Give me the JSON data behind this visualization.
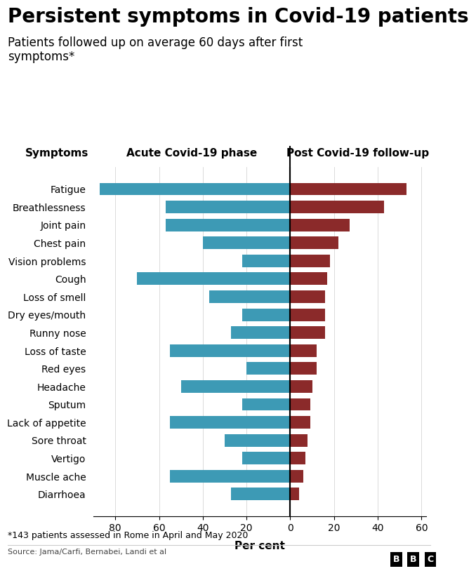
{
  "title": "Persistent symptoms in Covid-19 patients",
  "subtitle": "Patients followed up on average 60 days after first\nsymptoms*",
  "col_label_left": "Acute Covid-19 phase",
  "col_label_right": "Post Covid-19 follow-up",
  "symptoms_label": "Symptoms",
  "xlabel": "Per cent",
  "footnote": "*143 patients assessed in Rome in April and May 2020",
  "source": "Source: Jama/Carfi, Bernabei, Landi et al",
  "bbc_logo": "BBC",
  "symptoms": [
    "Fatigue",
    "Breathlessness",
    "Joint pain",
    "Chest pain",
    "Vision problems",
    "Cough",
    "Loss of smell",
    "Dry eyes/mouth",
    "Runny nose",
    "Loss of taste",
    "Red eyes",
    "Headache",
    "Sputum",
    "Lack of appetite",
    "Sore throat",
    "Vertigo",
    "Muscle ache",
    "Diarrhoea"
  ],
  "acute_values": [
    -87,
    -57,
    -57,
    -40,
    -22,
    -70,
    -37,
    -22,
    -27,
    -55,
    -20,
    -50,
    -22,
    -55,
    -30,
    -22,
    -55,
    -27
  ],
  "post_values": [
    53,
    43,
    27,
    22,
    18,
    17,
    16,
    16,
    16,
    12,
    12,
    10,
    9,
    9,
    8,
    7,
    6,
    4
  ],
  "acute_color": "#3d9ab5",
  "post_color": "#8b2a2a",
  "background_color": "#ffffff",
  "xlim": [
    -90,
    62
  ],
  "xticks": [
    -80,
    -60,
    -40,
    -20,
    0,
    20,
    40,
    60
  ],
  "xticklabels": [
    "80",
    "60",
    "40",
    "20",
    "0",
    "20",
    "40",
    "60"
  ],
  "title_fontsize": 20,
  "subtitle_fontsize": 12,
  "header_fontsize": 11,
  "tick_fontsize": 10,
  "xlabel_fontsize": 11
}
